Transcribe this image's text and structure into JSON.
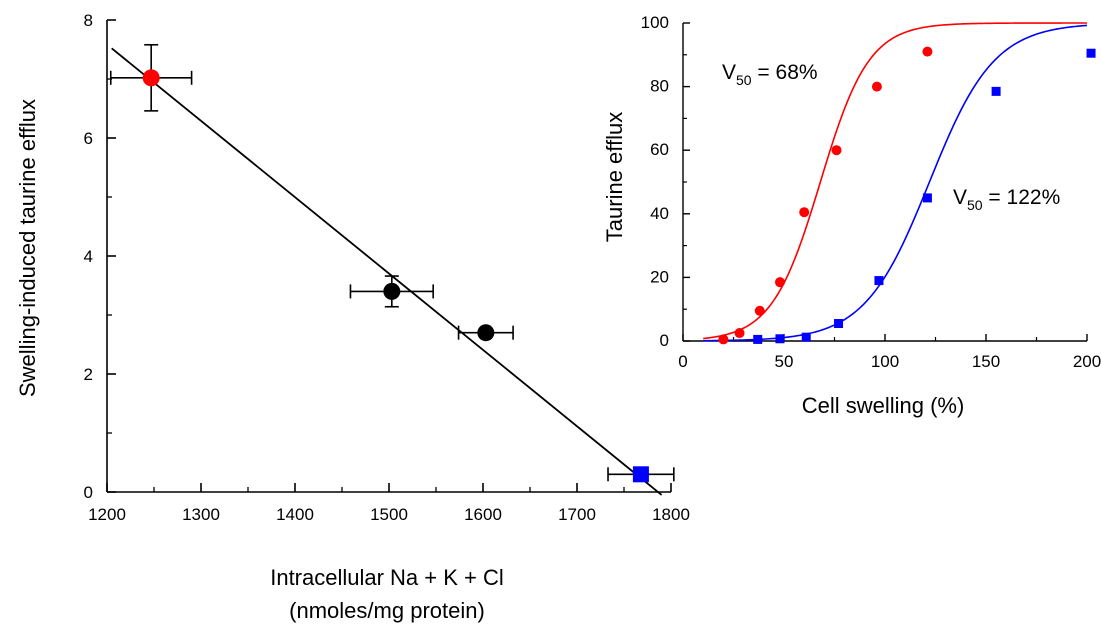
{
  "chart_data": [
    {
      "type": "scatter",
      "title": "",
      "xlabel_line1": "Intracellular Na + K + Cl",
      "xlabel_line2": "(nmoles/mg protein)",
      "ylabel": "Swelling-induced taurine efflux",
      "xlim": [
        1200,
        1800
      ],
      "ylim": [
        0,
        8
      ],
      "xticks": [
        "1200",
        "1300",
        "1400",
        "1500",
        "1600",
        "1700",
        "1800"
      ],
      "yticks": [
        "0",
        "2",
        "4",
        "6",
        "8"
      ],
      "points": [
        {
          "x": 1247,
          "y": 7.02,
          "xerr": 43,
          "yerr": 0.56,
          "color": "#ff0000",
          "marker": "circle"
        },
        {
          "x": 1503,
          "y": 3.4,
          "xerr": 44,
          "yerr": 0.26,
          "color": "#000000",
          "marker": "circle"
        },
        {
          "x": 1603,
          "y": 2.7,
          "xerr": 29,
          "yerr": 0,
          "color": "#000000",
          "marker": "circle"
        },
        {
          "x": 1768,
          "y": 0.3,
          "xerr": 35,
          "yerr": 0,
          "color": "#0000ff",
          "marker": "square"
        }
      ],
      "fit_line": {
        "x": [
          1205,
          1790
        ],
        "y": [
          7.52,
          -0.05
        ],
        "color": "#000000"
      }
    },
    {
      "type": "scatter",
      "title": "",
      "xlabel": "Cell swelling (%)",
      "ylabel": "Taurine efflux",
      "xlim": [
        0,
        200
      ],
      "ylim": [
        0,
        100
      ],
      "xticks": [
        "0",
        "50",
        "100",
        "150",
        "200"
      ],
      "yticks": [
        "0",
        "20",
        "40",
        "60",
        "80",
        "100"
      ],
      "series": [
        {
          "color": "#ff0000",
          "marker": "circle",
          "x": [
            20,
            28,
            38,
            48,
            60,
            76,
            96,
            121
          ],
          "y": [
            0.5,
            2.5,
            9.5,
            18.5,
            40.5,
            60,
            80,
            91
          ],
          "fit": {
            "v50": 68,
            "slope": 12
          }
        },
        {
          "color": "#0000ff",
          "marker": "square",
          "x": [
            37,
            48,
            61,
            77,
            97,
            121,
            155,
            202
          ],
          "y": [
            0.5,
            0.7,
            1.2,
            5.5,
            19,
            45,
            78.5,
            90.5
          ],
          "fit": {
            "v50": 122,
            "slope": 16
          }
        }
      ],
      "annotations": [
        {
          "prefix": "V",
          "sub": "50",
          "suffix": " = 68%",
          "color": "#ff0000"
        },
        {
          "prefix": "V",
          "sub": "50",
          "suffix": " = 122%",
          "color": "#0000ff"
        }
      ]
    }
  ]
}
